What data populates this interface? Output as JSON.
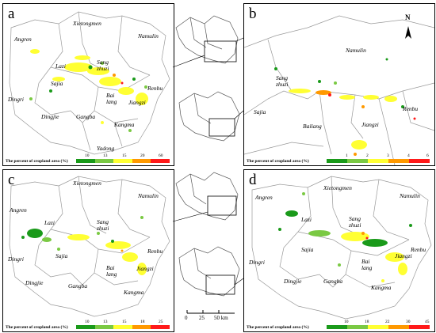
{
  "panels": {
    "a": {
      "label": "a",
      "places": [
        "Angren",
        "Xietongmen",
        "Namulin",
        "Lazi",
        "Sang zhuzi",
        "Renbu",
        "Dingri",
        "Sajia",
        "Bai lang",
        "Jiangzi",
        "Dingjie",
        "Gangba",
        "Kangma",
        "Yadong"
      ],
      "legend_title": "The percent of cropland area (%)",
      "legend_ticks": [
        "10",
        "13",
        "15",
        "20",
        "60"
      ]
    },
    "b": {
      "label": "b",
      "places": [
        "Namulin",
        "Sang zhuzi",
        "Sajia",
        "Bailang",
        "Jiangzi",
        "Renbu"
      ],
      "legend_title": "The percent of cropland area (%)",
      "legend_ticks": [
        "1",
        "2",
        "3",
        "4",
        "6"
      ],
      "north_label": "N"
    },
    "c": {
      "label": "c",
      "places": [
        "Xietongmen",
        "Namulin",
        "Angren",
        "Lazi",
        "Sang zhuzi",
        "Renbu",
        "Dingri",
        "Sajia",
        "Bai lang",
        "Jiangzi",
        "Dingjie",
        "Gangba",
        "Kangma"
      ],
      "legend_title": "The percent of cropland area (%)",
      "legend_ticks": [
        "10",
        "13",
        "15",
        "18",
        "25"
      ]
    },
    "d": {
      "label": "d",
      "places": [
        "Angren",
        "Xietongmen",
        "Namulin",
        "Lazi",
        "Sang zhuzi",
        "Sajia",
        "Dingri",
        "Renbu",
        "Bai lang",
        "Jiangzi",
        "Dingjie",
        "Gangba",
        "Kangma"
      ],
      "legend_title": "The percent of cropland area (%)",
      "legend_ticks": [
        "10",
        "18",
        "22",
        "30",
        "45"
      ]
    }
  },
  "scale": {
    "labels": [
      "0",
      "25",
      "50 km"
    ]
  },
  "colors": {
    "legend": [
      "#1a9a1a",
      "#7ac943",
      "#ffff33",
      "#ff9900",
      "#ff1a1a"
    ],
    "boundary": "#888888"
  }
}
